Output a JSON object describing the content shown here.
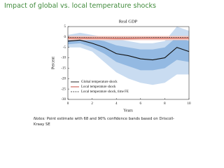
{
  "slide": {
    "title": "Impact of global vs. local temperature shocks",
    "notes_label": "Notes:",
    "notes_text": "Point estimate with 68 and 90% confidence bands based on Driscoll-Kraay SE"
  },
  "chart_data": {
    "type": "line",
    "title": "Real GDP",
    "x_label": "Years",
    "y_label": "Percent",
    "x": [
      0,
      1,
      2,
      3,
      4,
      5,
      6,
      7,
      8,
      9,
      10
    ],
    "xlim": [
      0,
      10
    ],
    "xticks": [
      0,
      2,
      4,
      6,
      8,
      10
    ],
    "ylim": [
      -30,
      5
    ],
    "yticks": [
      5,
      0,
      -5,
      -10,
      -15,
      -20,
      -25,
      -30
    ],
    "bands": [
      {
        "color": "#c9dcf1",
        "lower": [
          -5,
          -5,
          -7,
          -12,
          -17,
          -20,
          -22,
          -23,
          -22,
          -18,
          -18
        ],
        "upper": [
          1,
          2,
          1,
          0,
          -1,
          -2,
          -3,
          -3,
          -2,
          5,
          3
        ]
      },
      {
        "color": "#93b9e2",
        "lower": [
          -3.5,
          -3,
          -5,
          -8,
          -12,
          -14,
          -16,
          -16,
          -15,
          -11,
          -12
        ],
        "upper": [
          -0.5,
          0,
          -1,
          -2,
          -4,
          -5,
          -6,
          -6,
          -5,
          0,
          -2
        ]
      },
      {
        "color": "#f3c3ba",
        "lower": [
          -1.5,
          -1.5,
          -1.5,
          -1.5,
          -1.5,
          -1.5,
          -1.5,
          -1.5,
          -1.5,
          -1.5,
          -1.5
        ],
        "upper": [
          0.5,
          0.5,
          0.5,
          0.5,
          0.5,
          0.5,
          0.5,
          0.5,
          0.5,
          0.5,
          0.5
        ]
      }
    ],
    "series": [
      {
        "name": "Global temperature shock",
        "color": "#111111",
        "dash": false,
        "values": [
          -2,
          -1.5,
          -3,
          -5,
          -8,
          -9,
          -10.5,
          -11,
          -10,
          -5,
          -7
        ]
      },
      {
        "name": "Local temperature shock",
        "color": "#c0392b",
        "dash": false,
        "values": [
          -0.5,
          -0.5,
          -0.6,
          -0.6,
          -0.7,
          -0.7,
          -0.6,
          -0.6,
          -0.6,
          -0.5,
          -0.5
        ]
      },
      {
        "name": "Local temperature shock, time FE",
        "color": "#555555",
        "dash": true,
        "values": [
          -0.2,
          -0.2,
          -0.3,
          -0.3,
          -0.3,
          -0.3,
          -0.3,
          -0.2,
          -0.2,
          -0.2,
          -0.2
        ]
      }
    ]
  }
}
